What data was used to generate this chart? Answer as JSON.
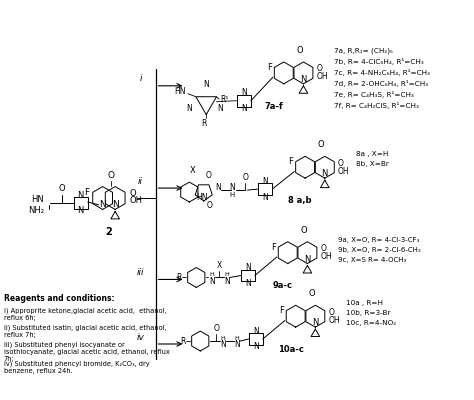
{
  "bg_color": "#ffffff",
  "reagents_title": "Reagents and conditions:",
  "reagent_i": "i) Approprite ketone,glacial acetic acid,  ethanol,\nreflux 6h;",
  "reagent_ii": "ii) Substituted isatin, glacial acetic acid, ethanol,\nreflux 7h;",
  "reagent_iii": "iii) Substituted phenyl isocyanate or\nisothiocyanate, glacial acetic acid, ethanol, reflux\n7h;",
  "reagent_iv": "iv) Substituted phencyl bromide, K₂CO₃, dry\nbenzene, reflux 24h.",
  "label_7a": "7a, R,R₁= (CH₂)₅",
  "label_7b": "7b, R= 4-ClC₆H₄, R¹=CH₃",
  "label_7c": "7c, R= 4-NH₂C₆H₄, R¹=CH₃",
  "label_7d": "7d, R= 2-OHC₆H₄, R¹=CH₃",
  "label_7e": "7e, R= C₄H₃S, R¹=CH₃",
  "label_7f": "7f, R= C₄H₂ClS, R¹=CH₃",
  "label_8a": "8a , X=H",
  "label_8b": "8b, X=Br",
  "label_9a": "9a, X=O, R= 4-Cl-3-CF₃",
  "label_9b": "9b, X=O, R= 2-Cl-6-CH₃",
  "label_9c": "9c, X=S R= 4-OCH₃",
  "label_10a": "10a , R=H",
  "label_10b": "10b, R=3-Br",
  "label_10c": "10c, R=4-NO₂",
  "compound_7af": "7a-f",
  "compound_8ab": "8 a,b",
  "compound_9ac": "9a-c",
  "compound_10ac": "10a-c"
}
